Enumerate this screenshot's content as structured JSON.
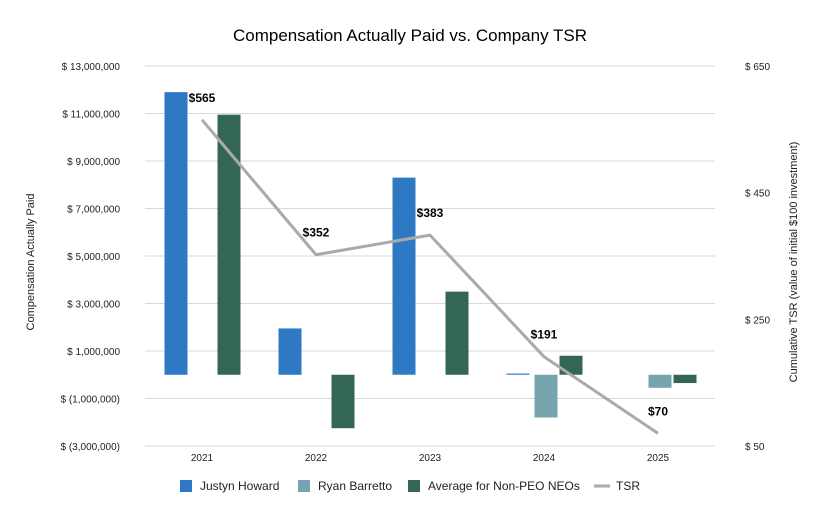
{
  "chart_data": {
    "type": "bar",
    "title": "Compensation Actually Paid vs. Company TSR",
    "categories": [
      "2021",
      "2022",
      "2023",
      "2024",
      "2025"
    ],
    "ylabel_left": "Compensation Actually Paid",
    "ylabel_right": "Cumulative TSR (value of initial $100 investment)",
    "y_left_ticks": [
      {
        "value": 13000000,
        "label": "$ 13,000,000"
      },
      {
        "value": 11000000,
        "label": "$ 11,000,000"
      },
      {
        "value": 9000000,
        "label": "$ 9,000,000"
      },
      {
        "value": 7000000,
        "label": "$ 7,000,000"
      },
      {
        "value": 5000000,
        "label": "$ 5,000,000"
      },
      {
        "value": 3000000,
        "label": "$ 3,000,000"
      },
      {
        "value": 1000000,
        "label": "$ 1,000,000"
      },
      {
        "value": -1000000,
        "label": "$ (1,000,000)"
      },
      {
        "value": -3000000,
        "label": "$ (3,000,000)"
      }
    ],
    "y_right_ticks": [
      {
        "value": 650,
        "label": "$ 650"
      },
      {
        "value": 450,
        "label": "$ 450"
      },
      {
        "value": 250,
        "label": "$ 250"
      },
      {
        "value": 50,
        "label": "$ 50"
      }
    ],
    "ylim_left": [
      -3000000,
      13000000
    ],
    "ylim_right": [
      50,
      650
    ],
    "grid": true,
    "legend_position": "bottom",
    "series": [
      {
        "name": "Justyn Howard",
        "color": "#2f78c4",
        "values": [
          11900000,
          1950000,
          8300000,
          50000,
          0
        ]
      },
      {
        "name": "Ryan Barretto",
        "color": "#76a5af",
        "values": [
          0,
          0,
          0,
          -1800000,
          -550000
        ]
      },
      {
        "name": "Average for Non-PEO NEOs",
        "color": "#336655",
        "values": [
          10950000,
          -2250000,
          3500000,
          800000,
          -350000
        ]
      }
    ],
    "line_series": {
      "name": "TSR",
      "color": "#aaaaaa",
      "values": [
        565,
        352,
        383,
        191,
        70
      ],
      "labels": [
        "$565",
        "$352",
        "$383",
        "$191",
        "$70"
      ]
    }
  }
}
